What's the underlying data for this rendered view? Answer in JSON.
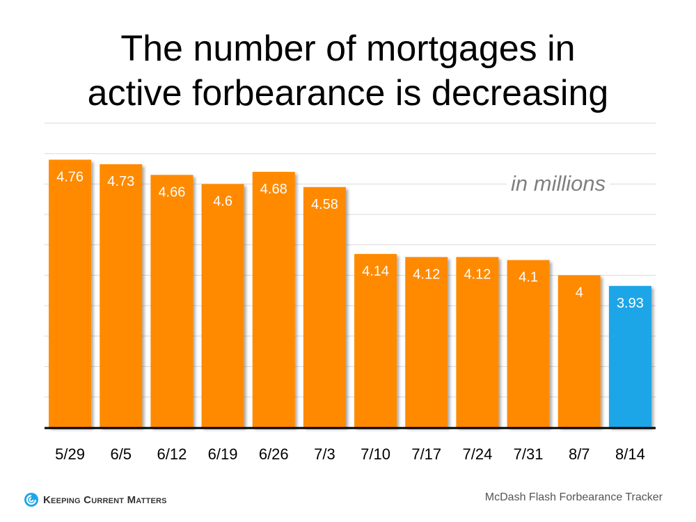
{
  "chart_data": {
    "type": "bar",
    "title": "The number of mortgages in active forbearance is decreasing",
    "annotation": "in millions",
    "categories": [
      "5/29",
      "6/5",
      "6/12",
      "6/19",
      "6/26",
      "7/3",
      "7/10",
      "7/17",
      "7/24",
      "7/31",
      "8/7",
      "8/14"
    ],
    "values": [
      4.76,
      4.73,
      4.66,
      4.6,
      4.68,
      4.58,
      4.14,
      4.12,
      4.12,
      4.1,
      4,
      3.93
    ],
    "data_labels": [
      "4.76",
      "4.73",
      "4.66",
      "4.6",
      "4.68",
      "4.58",
      "4.14",
      "4.12",
      "4.12",
      "4.1",
      "4",
      "3.93"
    ],
    "ylim": [
      3,
      5
    ],
    "y_grid_step": 0.2,
    "grid": true,
    "y_tick_labels_shown": false,
    "colors": {
      "default": "#FF8A00",
      "highlight": "#1BA6E8"
    },
    "highlight_index": 11
  },
  "footer": {
    "logo_text": "Keeping Current Matters",
    "source": "McDash Flash Forbearance Tracker"
  }
}
